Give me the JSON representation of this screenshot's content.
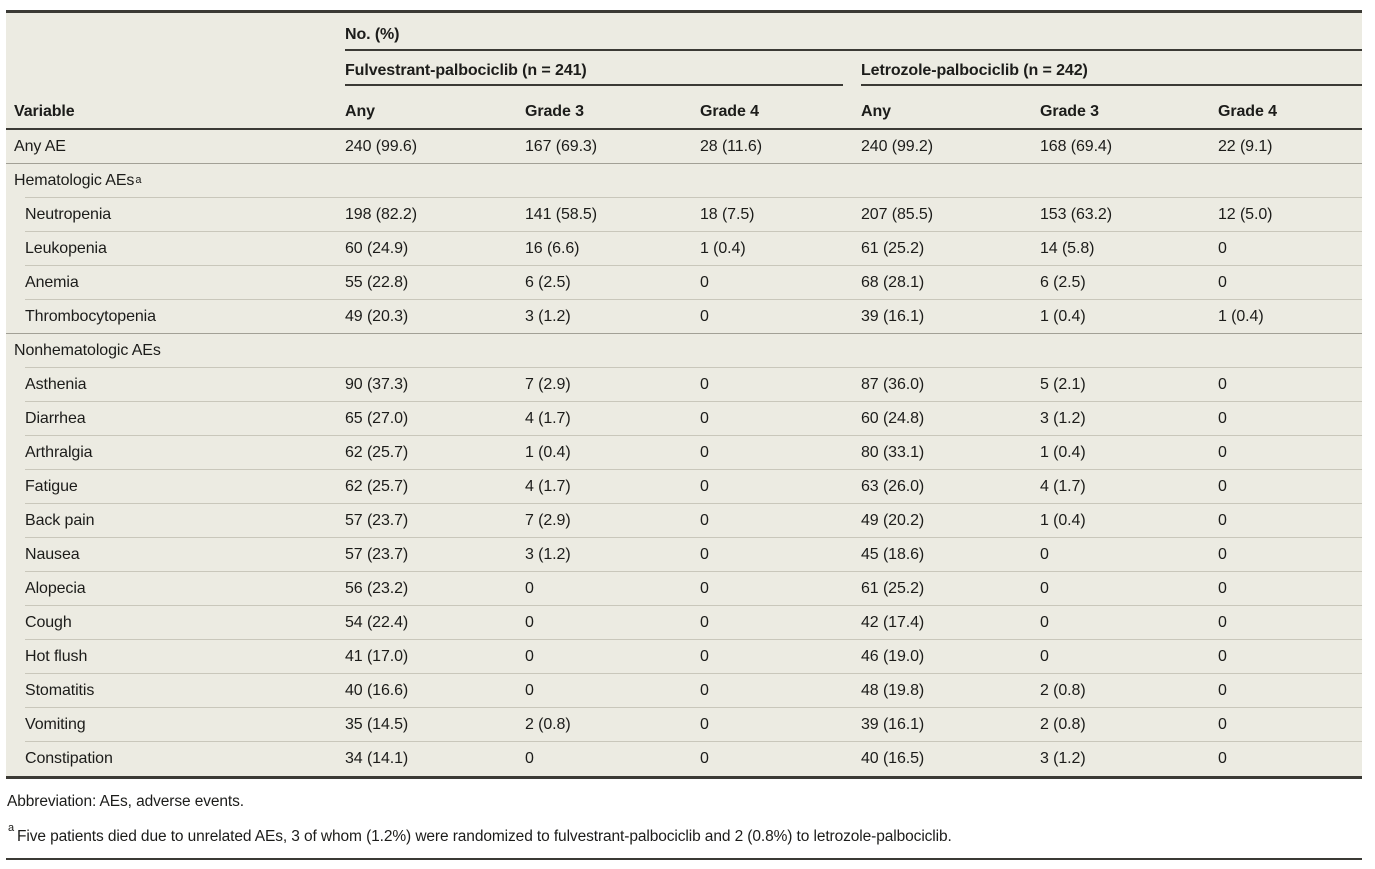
{
  "table": {
    "spanner": "No. (%)",
    "groups": [
      {
        "label": "Fulvestrant-palbociclib (n = 241)"
      },
      {
        "label": "Letrozole-palbociclib (n = 242)"
      }
    ],
    "columns": [
      "Variable",
      "Any",
      "Grade 3",
      "Grade 4",
      "Any",
      "Grade 3",
      "Grade 4"
    ],
    "rows": [
      {
        "label": "Any AE",
        "indent": false,
        "section": false,
        "divider": "full",
        "values": [
          "240 (99.6)",
          "167 (69.3)",
          "28 (11.6)",
          "240 (99.2)",
          "168 (69.4)",
          "22 (9.1)"
        ]
      },
      {
        "label": "Hematologic AEs",
        "sup": "a",
        "section": true,
        "divider": "inset"
      },
      {
        "label": "Neutropenia",
        "indent": true,
        "section": false,
        "divider": "inset",
        "values": [
          "198 (82.2)",
          "141 (58.5)",
          "18 (7.5)",
          "207 (85.5)",
          "153 (63.2)",
          "12 (5.0)"
        ]
      },
      {
        "label": "Leukopenia",
        "indent": true,
        "section": false,
        "divider": "inset",
        "values": [
          "60 (24.9)",
          "16 (6.6)",
          "1 (0.4)",
          "61 (25.2)",
          "14 (5.8)",
          "0"
        ]
      },
      {
        "label": "Anemia",
        "indent": true,
        "section": false,
        "divider": "inset",
        "values": [
          "55 (22.8)",
          "6 (2.5)",
          "0",
          "68 (28.1)",
          "6 (2.5)",
          "0"
        ]
      },
      {
        "label": "Thrombocytopenia",
        "indent": true,
        "section": false,
        "divider": "full",
        "values": [
          "49 (20.3)",
          "3 (1.2)",
          "0",
          "39 (16.1)",
          "1 (0.4)",
          "1 (0.4)"
        ]
      },
      {
        "label": "Nonhematologic AEs",
        "section": true,
        "divider": "inset"
      },
      {
        "label": "Asthenia",
        "indent": true,
        "section": false,
        "divider": "inset",
        "values": [
          "90 (37.3)",
          "7 (2.9)",
          "0",
          "87 (36.0)",
          "5 (2.1)",
          "0"
        ]
      },
      {
        "label": "Diarrhea",
        "indent": true,
        "section": false,
        "divider": "inset",
        "values": [
          "65 (27.0)",
          "4 (1.7)",
          "0",
          "60 (24.8)",
          "3 (1.2)",
          "0"
        ]
      },
      {
        "label": "Arthralgia",
        "indent": true,
        "section": false,
        "divider": "inset",
        "values": [
          "62 (25.7)",
          "1 (0.4)",
          "0",
          "80 (33.1)",
          "1 (0.4)",
          "0"
        ]
      },
      {
        "label": "Fatigue",
        "indent": true,
        "section": false,
        "divider": "inset",
        "values": [
          "62 (25.7)",
          "4 (1.7)",
          "0",
          "63 (26.0)",
          "4 (1.7)",
          "0"
        ]
      },
      {
        "label": "Back pain",
        "indent": true,
        "section": false,
        "divider": "inset",
        "values": [
          "57 (23.7)",
          "7 (2.9)",
          "0",
          "49 (20.2)",
          "1 (0.4)",
          "0"
        ]
      },
      {
        "label": "Nausea",
        "indent": true,
        "section": false,
        "divider": "inset",
        "values": [
          "57 (23.7)",
          "3 (1.2)",
          "0",
          "45 (18.6)",
          "0",
          "0"
        ]
      },
      {
        "label": "Alopecia",
        "indent": true,
        "section": false,
        "divider": "inset",
        "values": [
          "56 (23.2)",
          "0",
          "0",
          "61 (25.2)",
          "0",
          "0"
        ]
      },
      {
        "label": "Cough",
        "indent": true,
        "section": false,
        "divider": "inset",
        "values": [
          "54 (22.4)",
          "0",
          "0",
          "42 (17.4)",
          "0",
          "0"
        ]
      },
      {
        "label": "Hot flush",
        "indent": true,
        "section": false,
        "divider": "inset",
        "values": [
          "41 (17.0)",
          "0",
          "0",
          "46 (19.0)",
          "0",
          "0"
        ]
      },
      {
        "label": "Stomatitis",
        "indent": true,
        "section": false,
        "divider": "inset",
        "values": [
          "40 (16.6)",
          "0",
          "0",
          "48 (19.8)",
          "2 (0.8)",
          "0"
        ]
      },
      {
        "label": "Vomiting",
        "indent": true,
        "section": false,
        "divider": "inset",
        "values": [
          "35 (14.5)",
          "2 (0.8)",
          "0",
          "39 (16.1)",
          "2 (0.8)",
          "0"
        ]
      },
      {
        "label": "Constipation",
        "indent": true,
        "section": false,
        "divider": "none",
        "values": [
          "34 (14.1)",
          "0",
          "0",
          "40 (16.5)",
          "3 (1.2)",
          "0"
        ]
      }
    ]
  },
  "footnotes": {
    "abbreviation": "Abbreviation: AEs, adverse events.",
    "marker": "a",
    "note": "Five patients died due to unrelated AEs, 3 of whom (1.2%) were randomized to fulvestrant-palbociclib and 2 (0.8%) to letrozole-palbociclib."
  },
  "colors": {
    "table_background": "#ECEBE2",
    "rule_dark": "#3B3A35",
    "divider_full": "#A2A096",
    "divider_inset": "#C9C7BB",
    "text": "#1C1C1A"
  }
}
